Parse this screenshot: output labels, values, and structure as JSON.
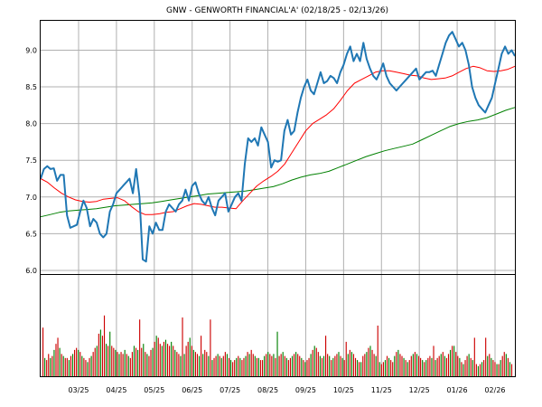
{
  "chart_data": {
    "type": "line",
    "title": "GNW - GENWORTH FINANCIAL'A' (02/18/25 - 02/13/26)",
    "xlabel": "",
    "ylabel": "",
    "ylim": [
      5.95,
      9.4
    ],
    "grid": true,
    "y_ticks": [
      "6.0",
      "6.5",
      "7.0",
      "7.5",
      "8.0",
      "8.5",
      "9.0"
    ],
    "x_ticks": [
      "03/25",
      "04/25",
      "05/25",
      "06/25",
      "07/25",
      "08/25",
      "09/25",
      "10/25",
      "11/25",
      "12/25",
      "01/26",
      "02/26"
    ],
    "colors": {
      "price": "#1f77b4",
      "ma_short": "#ff0000",
      "ma_long": "#008000",
      "vol_up": "#008000",
      "vol_down": "#cc0000"
    },
    "series": [
      {
        "key": "price",
        "values": [
          7.25,
          7.38,
          7.42,
          7.38,
          7.39,
          7.22,
          7.3,
          7.3,
          6.75,
          6.58,
          6.6,
          6.62,
          6.8,
          6.95,
          6.85,
          6.6,
          6.7,
          6.65,
          6.5,
          6.45,
          6.5,
          6.8,
          6.9,
          7.05,
          7.1,
          7.15,
          7.2,
          7.25,
          7.05,
          7.38,
          7.0,
          6.15,
          6.12,
          6.6,
          6.5,
          6.65,
          6.55,
          6.55,
          6.8,
          6.9,
          6.85,
          6.8,
          6.9,
          6.95,
          7.1,
          6.95,
          7.15,
          7.2,
          7.05,
          6.95,
          6.9,
          7.0,
          6.85,
          6.75,
          6.95,
          7.0,
          7.05,
          6.8,
          6.9,
          7.0,
          7.05,
          6.95,
          7.45,
          7.8,
          7.75,
          7.8,
          7.7,
          7.95,
          7.85,
          7.75,
          7.4,
          7.5,
          7.48,
          7.5,
          7.9,
          8.05,
          7.85,
          7.9,
          8.15,
          8.35,
          8.5,
          8.6,
          8.45,
          8.4,
          8.55,
          8.7,
          8.55,
          8.58,
          8.65,
          8.62,
          8.55,
          8.7,
          8.8,
          8.95,
          9.05,
          8.85,
          8.95,
          8.85,
          9.1,
          8.88,
          8.75,
          8.65,
          8.6,
          8.7,
          8.82,
          8.65,
          8.55,
          8.5,
          8.45,
          8.5,
          8.55,
          8.6,
          8.65,
          8.7,
          8.75,
          8.6,
          8.65,
          8.7,
          8.7,
          8.72,
          8.65,
          8.8,
          8.95,
          9.1,
          9.2,
          9.25,
          9.15,
          9.05,
          9.1,
          9.0,
          8.8,
          8.5,
          8.35,
          8.25,
          8.2,
          8.15,
          8.25,
          8.35,
          8.55,
          8.75,
          8.95,
          9.05,
          8.95,
          9.0,
          8.92
        ],
        "x_range": [
          0,
          1
        ]
      },
      {
        "key": "ma_short",
        "values": [
          7.25,
          7.2,
          7.12,
          7.05,
          7.0,
          6.96,
          6.94,
          6.93,
          6.94,
          6.97,
          6.98,
          6.99,
          6.95,
          6.87,
          6.8,
          6.76,
          6.76,
          6.77,
          6.79,
          6.8,
          6.84,
          6.88,
          6.91,
          6.9,
          6.88,
          6.86,
          6.86,
          6.85,
          6.84,
          6.95,
          7.05,
          7.15,
          7.22,
          7.28,
          7.35,
          7.45,
          7.6,
          7.75,
          7.9,
          8.0,
          8.06,
          8.12,
          8.2,
          8.32,
          8.45,
          8.55,
          8.6,
          8.65,
          8.7,
          8.72,
          8.72,
          8.7,
          8.68,
          8.66,
          8.65,
          8.62,
          8.6,
          8.61,
          8.62,
          8.65,
          8.7,
          8.75,
          8.78,
          8.76,
          8.72,
          8.71,
          8.72,
          8.74,
          8.78
        ],
        "x_range": [
          0,
          1
        ]
      },
      {
        "key": "ma_long",
        "values": [
          6.73,
          6.76,
          6.79,
          6.81,
          6.82,
          6.83,
          6.84,
          6.86,
          6.88,
          6.89,
          6.9,
          6.91,
          6.92,
          6.94,
          6.96,
          6.98,
          7.0,
          7.02,
          7.04,
          7.05,
          7.06,
          7.07,
          7.08,
          7.1,
          7.12,
          7.14,
          7.18,
          7.23,
          7.27,
          7.3,
          7.32,
          7.35,
          7.4,
          7.45,
          7.5,
          7.55,
          7.59,
          7.63,
          7.66,
          7.69,
          7.72,
          7.78,
          7.84,
          7.9,
          7.96,
          8.0,
          8.03,
          8.05,
          8.08,
          8.13,
          8.18,
          8.22
        ],
        "x_range": [
          0,
          1
        ]
      }
    ],
    "volume": {
      "values": [
        20,
        18,
        16,
        22,
        18,
        20,
        26,
        32,
        38,
        28,
        22,
        20,
        18,
        18,
        16,
        20,
        22,
        26,
        28,
        26,
        24,
        20,
        18,
        16,
        14,
        18,
        20,
        24,
        28,
        30,
        42,
        46,
        40,
        36,
        32,
        30,
        28,
        30,
        28,
        26,
        24,
        22,
        24,
        22,
        26,
        22,
        20,
        18,
        24,
        30,
        28,
        26,
        30,
        28,
        32,
        24,
        22,
        20,
        26,
        28,
        34,
        40,
        38,
        32,
        30,
        34,
        36,
        32,
        30,
        34,
        30,
        26,
        24,
        22,
        20,
        18,
        22,
        30,
        34,
        38,
        30,
        26,
        24,
        22,
        20,
        18,
        22,
        26,
        24,
        20,
        18,
        16,
        18,
        20,
        22,
        20,
        18,
        20,
        24,
        22,
        18,
        16,
        14,
        16,
        18,
        20,
        18,
        16,
        18,
        20,
        24,
        22,
        26,
        22,
        20,
        18,
        18,
        16,
        16,
        20,
        22,
        24,
        22,
        20,
        22,
        18,
        16,
        20,
        22,
        24,
        20,
        18,
        16,
        18,
        20,
        22,
        24,
        22,
        20,
        18,
        16,
        14,
        16,
        18,
        22,
        26,
        30,
        28,
        24,
        20,
        18,
        20,
        24,
        22,
        20,
        16,
        18,
        20,
        22,
        24,
        20,
        18,
        16,
        18,
        22,
        26,
        24,
        22,
        18,
        16,
        14,
        14,
        20,
        22,
        24,
        28,
        30,
        26,
        22,
        20,
        18,
        14,
        12,
        14,
        16,
        20,
        18,
        16,
        14,
        20,
        24,
        26,
        22,
        20,
        18,
        16,
        14,
        16,
        20,
        22,
        24,
        22,
        20,
        18,
        16,
        14,
        16,
        18,
        20,
        18,
        16,
        16,
        18,
        20,
        22,
        24,
        20,
        18,
        22,
        26,
        28,
        30,
        24,
        20,
        18,
        14,
        12,
        16,
        20,
        22,
        18,
        16,
        14,
        12,
        10,
        12,
        14,
        16,
        18,
        20,
        22,
        18,
        16,
        14,
        12,
        12,
        16,
        20,
        24,
        22,
        18,
        14,
        12
      ],
      "spikes": {
        "0": 48,
        "33": 60,
        "36": 44,
        "52": 56,
        "75": 58,
        "85": 40,
        "90": 56,
        "126": 44,
        "152": 40,
        "163": 34,
        "180": 50,
        "210": 30,
        "220": 30,
        "232": 38,
        "238": 38
      },
      "ylim": [
        0,
        100
      ]
    }
  }
}
